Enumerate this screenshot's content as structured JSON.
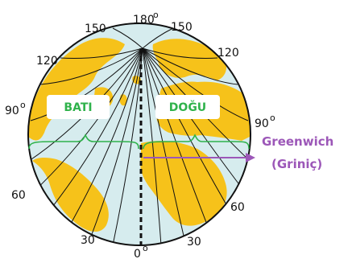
{
  "labels": {
    "top_center": "180",
    "top_left": "150",
    "top_right": "150",
    "upper_left": "120",
    "upper_right": "120",
    "mid_left": "90",
    "mid_right": "90",
    "lower_left": "60",
    "lower_right": "60",
    "bottom_left": "30",
    "bottom_right": "30",
    "bottom_center": "0",
    "degree": "o"
  },
  "regions": {
    "west": "BATI",
    "east": "DOĞU"
  },
  "callout": {
    "line1": "Greenwich",
    "line2": "(Griniç)"
  },
  "colors": {
    "ocean": "#d6ecee",
    "land": "#f6c21a",
    "outline": "#111111",
    "equator_brace": "#2fb24b",
    "region_text": "#2fb24b",
    "callout": "#9c57b8"
  }
}
